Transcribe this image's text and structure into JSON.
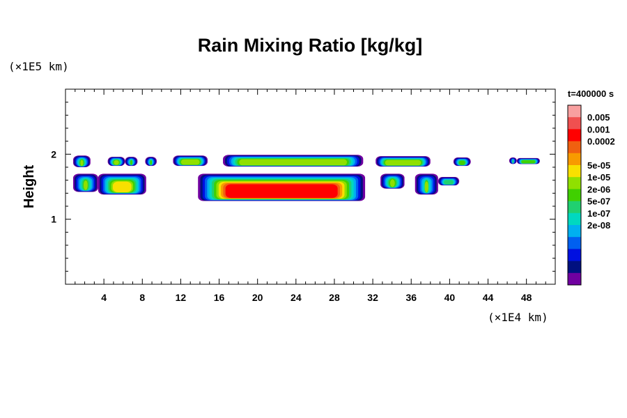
{
  "chart_data": {
    "type": "heatmap",
    "title": "Rain Mixing Ratio [kg/kg]",
    "ylabel": "Height",
    "x_unit": "(×1E4 km)",
    "y_unit": "(×1E5 km)",
    "time_label": "t=400000 s",
    "xlim": [
      0,
      51
    ],
    "ylim": [
      0,
      3
    ],
    "x_ticks": [
      4,
      8,
      12,
      16,
      20,
      24,
      28,
      32,
      36,
      40,
      44,
      48
    ],
    "x_tick_labels": [
      "4",
      "8",
      "12",
      "16",
      "20",
      "24",
      "28",
      "32",
      "36",
      "40",
      "44",
      "48"
    ],
    "y_ticks": [
      1,
      2
    ],
    "y_tick_labels": [
      "1",
      "2"
    ],
    "colorbar": {
      "colors": [
        "#f8a0a0",
        "#f05050",
        "#ff0000",
        "#f06010",
        "#f89a00",
        "#f8e000",
        "#90e000",
        "#40d000",
        "#20d070",
        "#00d8c0",
        "#00b0f0",
        "#0060f0",
        "#0010e0",
        "#001080",
        "#7000a0"
      ],
      "labels": [
        "0.005",
        "0.001",
        "0.0002",
        "5e-05",
        "1e-05",
        "2e-06",
        "5e-07",
        "1e-07",
        "2e-08"
      ]
    },
    "regions": [
      {
        "x": [
          0.8,
          2.6
        ],
        "y": [
          1.8,
          1.98
        ],
        "peak": 0.55
      },
      {
        "x": [
          4.4,
          6.2
        ],
        "y": [
          1.82,
          1.96
        ],
        "peak": 0.55
      },
      {
        "x": [
          6.2,
          7.5
        ],
        "y": [
          1.82,
          1.96
        ],
        "peak": 0.5
      },
      {
        "x": [
          8.3,
          9.5
        ],
        "y": [
          1.82,
          1.96
        ],
        "peak": 0.5
      },
      {
        "x": [
          11.2,
          14.8
        ],
        "y": [
          1.82,
          1.98
        ],
        "peak": 0.55
      },
      {
        "x": [
          16.4,
          31.0
        ],
        "y": [
          1.81,
          1.99
        ],
        "peak": 0.55
      },
      {
        "x": [
          32.3,
          38.0
        ],
        "y": [
          1.81,
          1.97
        ],
        "peak": 0.55
      },
      {
        "x": [
          40.4,
          42.2
        ],
        "y": [
          1.82,
          1.95
        ],
        "peak": 0.5
      },
      {
        "x": [
          46.2,
          47.0
        ],
        "y": [
          1.85,
          1.95
        ],
        "peak": 0.45
      },
      {
        "x": [
          47.0,
          49.4
        ],
        "y": [
          1.85,
          1.94
        ],
        "peak": 0.5
      },
      {
        "x": [
          0.8,
          3.4
        ],
        "y": [
          1.42,
          1.7
        ],
        "peak": 0.55
      },
      {
        "x": [
          3.4,
          8.4
        ],
        "y": [
          1.38,
          1.7
        ],
        "peak": 0.62
      },
      {
        "x": [
          13.8,
          31.2
        ],
        "y": [
          1.28,
          1.7
        ],
        "peak": 0.85
      },
      {
        "x": [
          32.8,
          35.3
        ],
        "y": [
          1.47,
          1.7
        ],
        "peak": 0.55
      },
      {
        "x": [
          36.4,
          38.8
        ],
        "y": [
          1.38,
          1.7
        ],
        "peak": 0.55
      },
      {
        "x": [
          38.8,
          41.0
        ],
        "y": [
          1.52,
          1.65
        ],
        "peak": 0.45
      }
    ]
  }
}
